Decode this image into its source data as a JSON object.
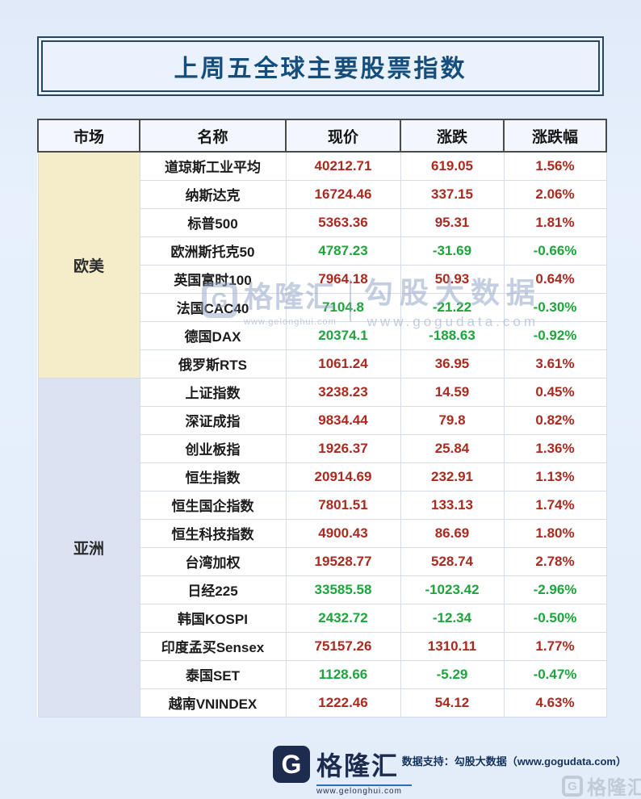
{
  "title": "上周五全球主要股票指数",
  "colors": {
    "up": "#ab2a20",
    "down": "#1ea43c",
    "accent": "#154e7d",
    "group_europe_america_bg": "#f5ecca",
    "group_asia_bg": "#dbe3f2",
    "footer_navy": "#1d2b4e"
  },
  "chart_data": {
    "type": "table",
    "title": "上周五全球主要股票指数",
    "columns": [
      "市场",
      "名称",
      "现价",
      "涨跌",
      "涨跌幅"
    ],
    "rows": [
      [
        "欧美",
        "道琼斯工业平均",
        "40212.71",
        "619.05",
        "1.56%"
      ],
      [
        "欧美",
        "纳斯达克",
        "16724.46",
        "337.15",
        "2.06%"
      ],
      [
        "欧美",
        "标普500",
        "5363.36",
        "95.31",
        "1.81%"
      ],
      [
        "欧美",
        "欧洲斯托克50",
        "4787.23",
        "-31.69",
        "-0.66%"
      ],
      [
        "欧美",
        "英国富时100",
        "7964.18",
        "50.93",
        "0.64%"
      ],
      [
        "欧美",
        "法国CAC40",
        "7104.8",
        "-21.22",
        "-0.30%"
      ],
      [
        "欧美",
        "德国DAX",
        "20374.1",
        "-188.63",
        "-0.92%"
      ],
      [
        "欧美",
        "俄罗斯RTS",
        "1061.24",
        "36.95",
        "3.61%"
      ],
      [
        "亚洲",
        "上证指数",
        "3238.23",
        "14.59",
        "0.45%"
      ],
      [
        "亚洲",
        "深证成指",
        "9834.44",
        "79.8",
        "0.82%"
      ],
      [
        "亚洲",
        "创业板指",
        "1926.37",
        "25.84",
        "1.36%"
      ],
      [
        "亚洲",
        "恒生指数",
        "20914.69",
        "232.91",
        "1.13%"
      ],
      [
        "亚洲",
        "恒生国企指数",
        "7801.51",
        "133.13",
        "1.74%"
      ],
      [
        "亚洲",
        "恒生科技指数",
        "4900.43",
        "86.69",
        "1.80%"
      ],
      [
        "亚洲",
        "台湾加权",
        "19528.77",
        "528.74",
        "2.78%"
      ],
      [
        "亚洲",
        "日经225",
        "33585.58",
        "-1023.42",
        "-2.96%"
      ],
      [
        "亚洲",
        "韩国KOSPI",
        "2432.72",
        "-12.34",
        "-0.50%"
      ],
      [
        "亚洲",
        "印度孟买Sensex",
        "75157.26",
        "1310.11",
        "1.77%"
      ],
      [
        "亚洲",
        "泰国SET",
        "1128.66",
        "-5.29",
        "-0.47%"
      ],
      [
        "亚洲",
        "越南VNINDEX",
        "1222.46",
        "54.12",
        "4.63%"
      ]
    ]
  },
  "watermarks": {
    "center_logo": "格隆汇",
    "center_logo_url": "www.gelonghui.com",
    "center_text": "勾股大数据",
    "center_url": "www.gogudata.com",
    "corner": "格隆汇"
  },
  "footer": {
    "logo_letter": "G",
    "logo_text": "格隆汇",
    "logo_url": "www.gelonghui.com",
    "support_text": "数据支持：勾股大数据（www.gogudata.com）"
  }
}
